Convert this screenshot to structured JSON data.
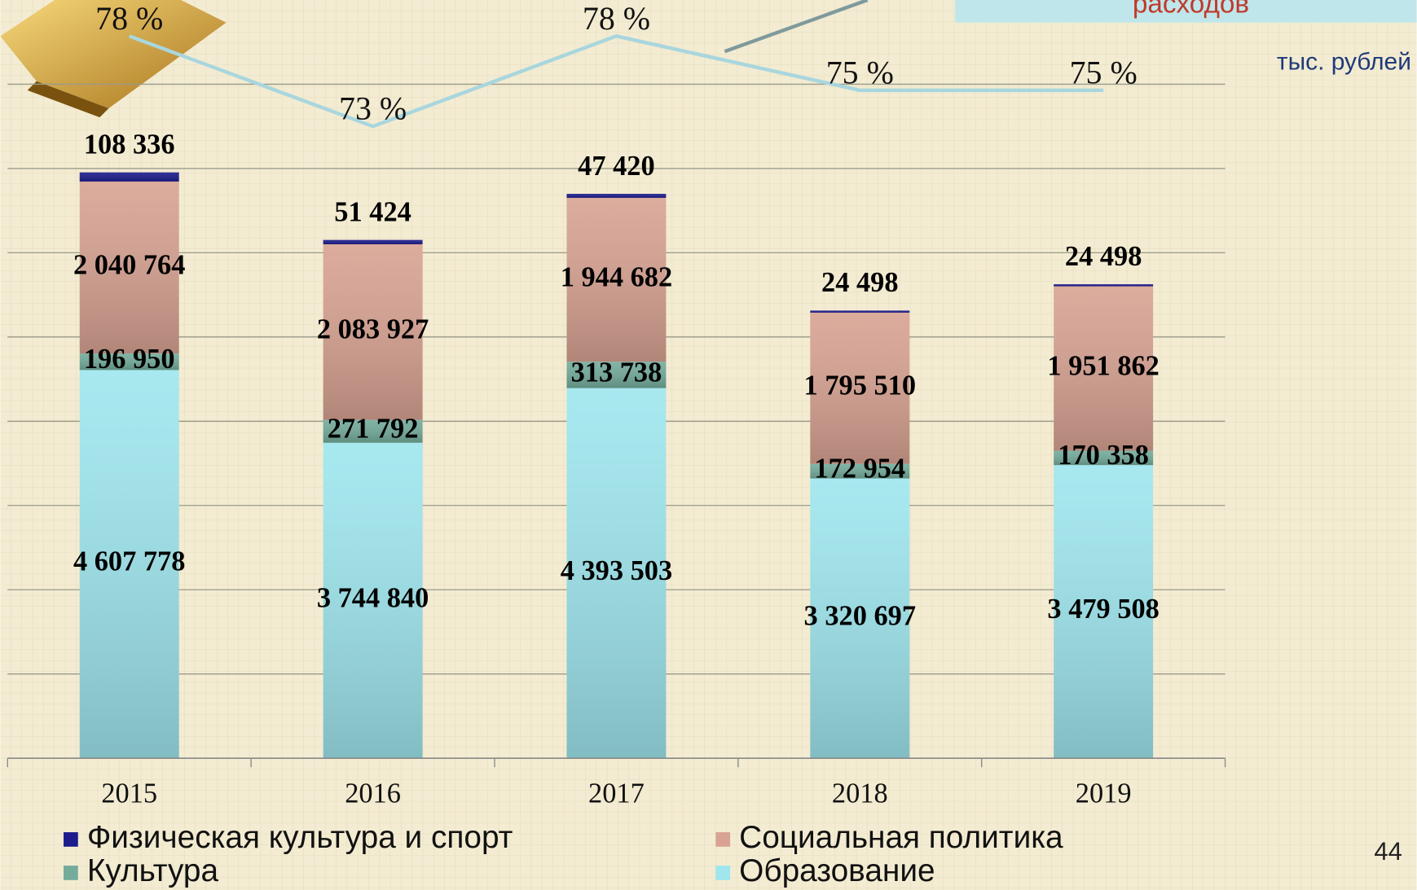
{
  "chart_data": {
    "type": "bar",
    "stacked": true,
    "header": "расходов",
    "unit": "тыс. рублей",
    "page_number": "44",
    "categories": [
      "2015",
      "2016",
      "2017",
      "2018",
      "2019"
    ],
    "ylim": [
      0,
      9000000
    ],
    "yticks": [
      0,
      1000000,
      2000000,
      3000000,
      4000000,
      5000000,
      6000000,
      7000000,
      8000000
    ],
    "grid": true,
    "series": [
      {
        "name": "Образование",
        "color": "#9fe6ee",
        "values": [
          4607778,
          3744840,
          4393503,
          3320697,
          3479508
        ],
        "value_labels": [
          "4 607 778",
          "3 744 840",
          "4 393 503",
          "3 320 697",
          "3 479 508"
        ]
      },
      {
        "name": "Культура",
        "color": "#74ac9c",
        "values": [
          196950,
          271792,
          313738,
          172954,
          170358
        ],
        "value_labels": [
          "196 950",
          "271 792",
          "313 738",
          "172 954",
          "170 358"
        ]
      },
      {
        "name": "Социальная политика",
        "color": "#d8a393",
        "values": [
          2040764,
          2083927,
          1944682,
          1795510,
          1951862
        ],
        "value_labels": [
          "2 040 764",
          "2 083 927",
          "1 944 682",
          "1 795 510",
          "1 951 862"
        ]
      },
      {
        "name": "Физическая культура и спорт",
        "color": "#1c1c8c",
        "values": [
          108336,
          51424,
          47420,
          24498,
          24498
        ],
        "value_labels": [
          "108 336",
          "51 424",
          "47 420",
          "24 498",
          "24 498"
        ]
      }
    ],
    "line": {
      "color": "#a9d6de",
      "axis": "y2",
      "values": [
        78,
        73,
        78,
        75,
        75
      ],
      "value_labels": [
        "78 %",
        "73 %",
        "78 %",
        "75 %",
        "75 %"
      ]
    },
    "y2lim": [
      38,
      80
    ]
  }
}
